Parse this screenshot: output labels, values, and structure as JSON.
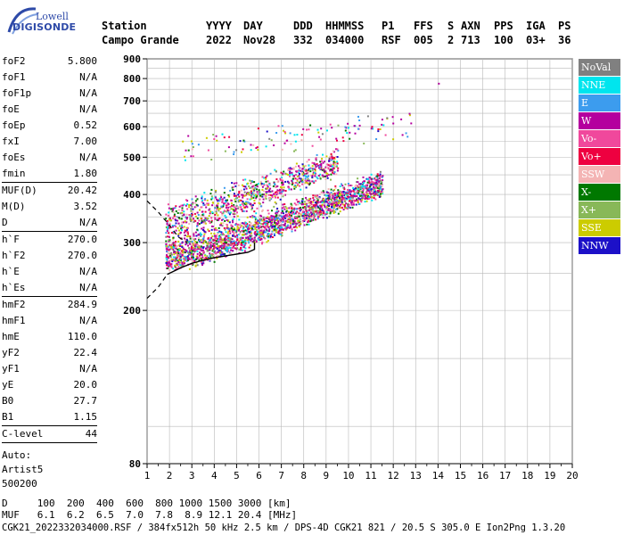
{
  "logo": {
    "line1": "Lowell",
    "line2": "DIGISONDE"
  },
  "header": {
    "labels": [
      "Station",
      "YYYY",
      "DAY",
      "DDD",
      "HHMMSS",
      "P1",
      "FFS",
      "S",
      "AXN",
      "PPS",
      "IGA",
      "PS"
    ],
    "values": [
      "Campo Grande",
      "2022",
      "Nov28",
      "332",
      "034000",
      "RSF",
      "005",
      "2",
      "713",
      "100",
      "03+",
      "36"
    ]
  },
  "params": {
    "g1": [
      [
        "foF2",
        "5.800"
      ],
      [
        "foF1",
        "N/A"
      ],
      [
        "foF1p",
        "N/A"
      ],
      [
        "foE",
        "N/A"
      ],
      [
        "foEp",
        "0.52"
      ],
      [
        "fxI",
        "7.00"
      ],
      [
        "foEs",
        "N/A"
      ],
      [
        "fmin",
        "1.80"
      ]
    ],
    "g2": [
      [
        "MUF(D)",
        "20.42"
      ],
      [
        "M(D)",
        "3.52"
      ],
      [
        "D",
        "N/A"
      ]
    ],
    "g3": [
      [
        "h`F",
        "270.0"
      ],
      [
        "h`F2",
        "270.0"
      ],
      [
        "h`E",
        "N/A"
      ],
      [
        "h`Es",
        "N/A"
      ]
    ],
    "g4": [
      [
        "hmF2",
        "284.9"
      ],
      [
        "hmF1",
        "N/A"
      ],
      [
        "hmE",
        "110.0"
      ],
      [
        "yF2",
        "22.4"
      ],
      [
        "yF1",
        "N/A"
      ],
      [
        "yE",
        "20.0"
      ],
      [
        "B0",
        "27.7"
      ],
      [
        "B1",
        "1.15"
      ]
    ],
    "g5": [
      [
        "C-level",
        "44"
      ]
    ],
    "auto": [
      "Auto:",
      "Artist5",
      "500200"
    ]
  },
  "bottom": {
    "line1": "D     100  200  400  600  800 1000 1500 3000 [km]",
    "line2": "MUF   6.1  6.2  6.5  7.0  7.8  8.9 12.1 20.4 [MHz]",
    "line3": "CGK21_2022332034000.RSF / 384fx512h 50 kHz 2.5 km / DPS-4D CGK21 821 / 20.5 S 305.0 E Ion2Png 1.3.20"
  },
  "legend": [
    {
      "label": "NoVal",
      "color": "#808080"
    },
    {
      "label": "NNE",
      "color": "#00e5ee"
    },
    {
      "label": "E",
      "color": "#3c9cee"
    },
    {
      "label": "W",
      "color": "#b4009e"
    },
    {
      "label": "Vo-",
      "color": "#f0489c"
    },
    {
      "label": "Vo+",
      "color": "#ee0040"
    },
    {
      "label": "SSW",
      "color": "#f4b4b4"
    },
    {
      "label": "X-",
      "color": "#007800"
    },
    {
      "label": "X+",
      "color": "#88b858"
    },
    {
      "label": "SSE",
      "color": "#cccc00"
    },
    {
      "label": "NNW",
      "color": "#1c10c8"
    }
  ],
  "chart_data": {
    "type": "scatter",
    "xlim": [
      1,
      20
    ],
    "ylim": [
      80,
      900
    ],
    "yscale": "log",
    "x_ticks": [
      "1",
      "2",
      "3",
      "4",
      "5",
      "6",
      "7",
      "8",
      "9",
      "10",
      "11",
      "12",
      "13",
      "14",
      "15",
      "16",
      "17",
      "18",
      "19",
      "20"
    ],
    "y_ticks": [
      "80",
      "200",
      "300",
      "400",
      "500",
      "600",
      "700",
      "800",
      "900"
    ],
    "y_tick_values": [
      80,
      200,
      300,
      400,
      500,
      600,
      700,
      800,
      900
    ],
    "grid": true,
    "legend_position": "right",
    "clusters": [
      {
        "name": "main-trace",
        "x_range": [
          1.8,
          11.5
        ],
        "y_start": 270,
        "y_end": 420,
        "spread": 45,
        "count": 2200
      },
      {
        "name": "upper-scatter",
        "x_range": [
          1.8,
          9.5
        ],
        "y_start": 330,
        "y_end": 480,
        "spread": 60,
        "count": 900
      },
      {
        "name": "high-echoes",
        "x_range": [
          2.5,
          12.8
        ],
        "y_start": 520,
        "y_end": 600,
        "spread": 70,
        "count": 120
      }
    ],
    "profile_line": [
      [
        1.9,
        248
      ],
      [
        2.5,
        258
      ],
      [
        3,
        265
      ],
      [
        3.5,
        270
      ],
      [
        4,
        274
      ],
      [
        4.5,
        277
      ],
      [
        5,
        280
      ],
      [
        5.5,
        283
      ],
      [
        5.8,
        288
      ],
      [
        5.8,
        300
      ]
    ],
    "dashed_profile": [
      [
        1,
        385
      ],
      [
        1.5,
        360
      ],
      [
        2,
        333
      ],
      [
        2.4,
        310
      ],
      [
        2.8,
        300
      ]
    ],
    "dashed_lower": [
      [
        1,
        215
      ],
      [
        1.5,
        230
      ],
      [
        1.9,
        248
      ]
    ],
    "isolated_points": [
      [
        14.0,
        780
      ],
      [
        12.6,
        568
      ],
      [
        10.4,
        640
      ],
      [
        10.4,
        595
      ],
      [
        11.2,
        560
      ]
    ]
  }
}
